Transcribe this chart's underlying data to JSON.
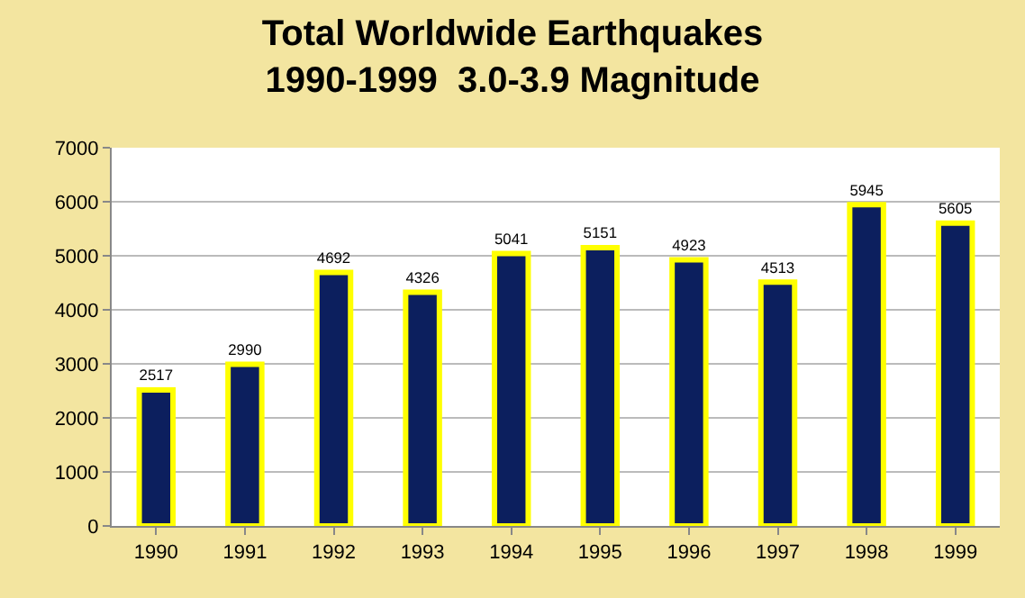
{
  "chart_data": {
    "type": "bar",
    "title": "Total Worldwide Earthquakes\n1990-1999  3.0-3.9 Magnitude",
    "categories": [
      "1990",
      "1991",
      "1992",
      "1993",
      "1994",
      "1995",
      "1996",
      "1997",
      "1998",
      "1999"
    ],
    "values": [
      2517,
      2990,
      4692,
      4326,
      5041,
      5151,
      4923,
      4513,
      5945,
      5605
    ],
    "color": "#0c1f5e",
    "ylim": [
      0,
      7000
    ],
    "yticks": [
      0,
      1000,
      2000,
      3000,
      4000,
      5000,
      6000,
      7000
    ],
    "grid": "y",
    "data_labels": true,
    "legend": false
  }
}
